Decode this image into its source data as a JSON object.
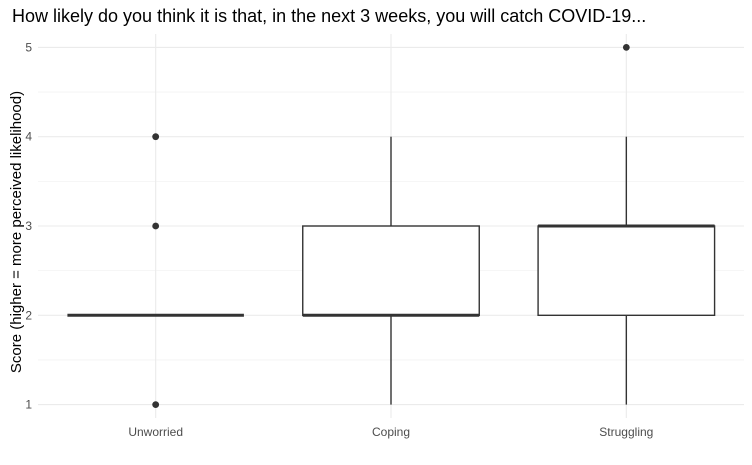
{
  "chart_data": {
    "type": "boxplot",
    "title": "How likely do you think it is that, in the next 3 weeks, you will catch COVID-19...",
    "xlabel": "",
    "ylabel": "Score (higher = more perceived likelihood)",
    "ylim": [
      0.85,
      5.15
    ],
    "y_ticks": [
      1,
      2,
      3,
      4,
      5
    ],
    "grid": true,
    "legend": "none",
    "colors": {
      "box_stroke": "#333333",
      "box_fill": "#ffffff",
      "grid": "#ebebeb"
    },
    "categories": [
      "Unworried",
      "Coping",
      "Struggling"
    ],
    "boxes": [
      {
        "category": "Unworried",
        "whisker_low": 2,
        "q1": 2,
        "median": 2,
        "q3": 2,
        "whisker_high": 2,
        "outliers": [
          1,
          3,
          4
        ]
      },
      {
        "category": "Coping",
        "whisker_low": 1,
        "q1": 2,
        "median": 2,
        "q3": 3,
        "whisker_high": 4,
        "outliers": []
      },
      {
        "category": "Struggling",
        "whisker_low": 1,
        "q1": 2,
        "median": 3,
        "q3": 3,
        "whisker_high": 4,
        "outliers": [
          5
        ]
      }
    ]
  }
}
